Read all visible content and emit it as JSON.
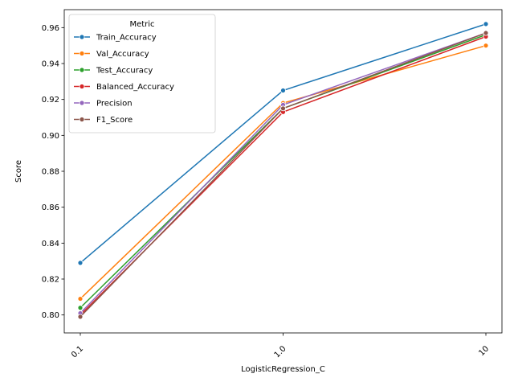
{
  "chart_data": {
    "type": "line",
    "title": "",
    "xlabel": "LogisticRegression_C",
    "ylabel": "Score",
    "x": [
      "0.1",
      "1.0",
      "10"
    ],
    "ylim": [
      0.79,
      0.97
    ],
    "yticks": [
      "0.80",
      "0.82",
      "0.84",
      "0.86",
      "0.88",
      "0.90",
      "0.92",
      "0.94",
      "0.96"
    ],
    "ytick_values": [
      0.8,
      0.82,
      0.84,
      0.86,
      0.88,
      0.9,
      0.92,
      0.94,
      0.96
    ],
    "grid": false,
    "legend": {
      "title": "Metric",
      "placement": "top-left"
    },
    "series": [
      {
        "name": "Train_Accuracy",
        "color": "#1f77b4",
        "values": [
          0.829,
          0.925,
          0.962
        ]
      },
      {
        "name": "Val_Accuracy",
        "color": "#ff7f0e",
        "values": [
          0.809,
          0.918,
          0.95
        ]
      },
      {
        "name": "Test_Accuracy",
        "color": "#2ca02c",
        "values": [
          0.804,
          0.915,
          0.956
        ]
      },
      {
        "name": "Balanced_Accuracy",
        "color": "#d62728",
        "values": [
          0.8,
          0.913,
          0.955
        ]
      },
      {
        "name": "Precision",
        "color": "#9467bd",
        "values": [
          0.801,
          0.917,
          0.957
        ]
      },
      {
        "name": "F1_Score",
        "color": "#8c564b",
        "values": [
          0.799,
          0.915,
          0.957
        ]
      }
    ]
  }
}
